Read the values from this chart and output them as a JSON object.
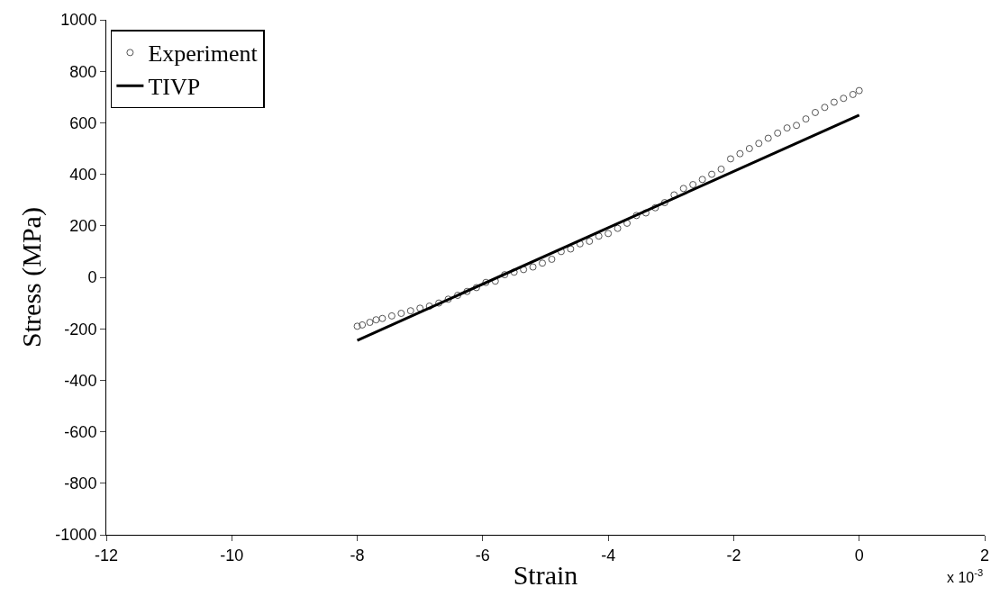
{
  "chart_data": {
    "type": "scatter",
    "xlabel": "Strain",
    "ylabel": "Stress (MPa)",
    "annotations": [
      "x 10$^{-3}$"
    ],
    "xlim": [
      -12,
      2
    ],
    "xticks": [
      -12,
      -10,
      -8,
      -6,
      -4,
      -2,
      0,
      2
    ],
    "ylim": [
      -1000,
      1000
    ],
    "yticks": [
      -1000,
      -800,
      -600,
      -400,
      -200,
      0,
      200,
      400,
      600,
      800,
      1000
    ],
    "legend": "top left",
    "series": [
      {
        "name": "Experiment",
        "marker": "circle",
        "color": "#555555",
        "x": [
          -8.0,
          -7.92,
          -7.8,
          -7.7,
          -7.6,
          -7.45,
          -7.3,
          -7.15,
          -7.0,
          -6.85,
          -6.7,
          -6.55,
          -6.4,
          -6.25,
          -6.1,
          -5.95,
          -5.8,
          -5.65,
          -5.5,
          -5.35,
          -5.2,
          -5.05,
          -4.9,
          -4.75,
          -4.6,
          -4.45,
          -4.3,
          -4.15,
          -4.0,
          -3.85,
          -3.7,
          -3.55,
          -3.4,
          -3.25,
          -3.1,
          -2.95,
          -2.8,
          -2.65,
          -2.5,
          -2.35,
          -2.2,
          -2.05,
          -1.9,
          -1.75,
          -1.6,
          -1.45,
          -1.3,
          -1.15,
          -1.0,
          -0.85,
          -0.7,
          -0.55,
          -0.4,
          -0.25,
          -0.1,
          0.0
        ],
        "values": [
          -190,
          -185,
          -175,
          -165,
          -160,
          -150,
          -140,
          -130,
          -120,
          -112,
          -100,
          -85,
          -70,
          -55,
          -40,
          -20,
          -15,
          10,
          20,
          30,
          40,
          55,
          70,
          100,
          110,
          130,
          140,
          160,
          170,
          190,
          210,
          240,
          250,
          270,
          290,
          320,
          345,
          360,
          380,
          400,
          420,
          460,
          480,
          500,
          520,
          540,
          560,
          580,
          590,
          615,
          640,
          660,
          680,
          695,
          710,
          725
        ]
      },
      {
        "name": "TIVP",
        "type": "line",
        "marker": "none",
        "line_style": "solid",
        "color": "#000000",
        "x": [
          -8,
          0
        ],
        "values": [
          -245,
          630
        ]
      }
    ]
  }
}
